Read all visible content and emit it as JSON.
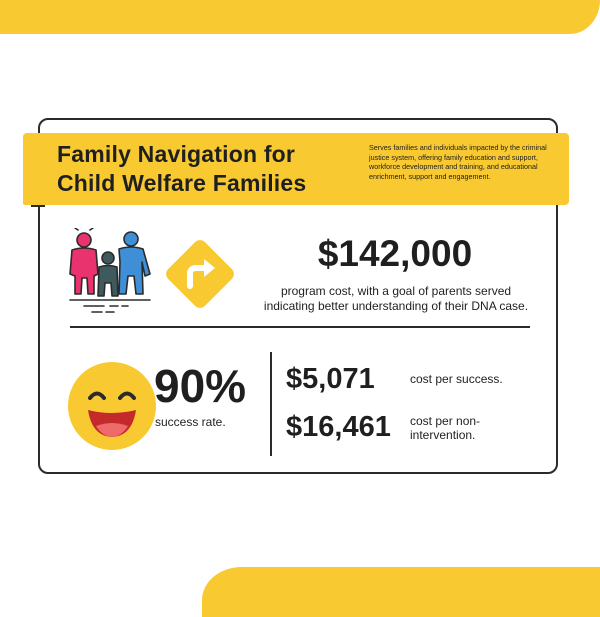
{
  "header": {
    "title_line1": "Family Navigation for",
    "title_line2": "Child Welfare Families",
    "description": "Serves families and individuals impacted by the criminal justice system, offering family education and support, workforce development and training, and educational enrichment, support and engagement."
  },
  "program": {
    "cost": "$142,000",
    "cost_description": "program cost, with a goal of parents served indicating better understanding of their DNA case."
  },
  "success": {
    "rate": "90%",
    "label": "success rate."
  },
  "stats": [
    {
      "value": "$5,071",
      "label": "cost per success."
    },
    {
      "value": "$16,461",
      "label": "cost per non-intervention."
    }
  ],
  "icons": {
    "people": "family-group-icon",
    "sign": "turn-right-sign-icon",
    "face": "smiley-face-icon"
  },
  "colors": {
    "accent_yellow": "#f8c930",
    "person_pink": "#e8336f",
    "person_teal": "#3e5a5e",
    "person_blue": "#3f8fd6",
    "outline": "#2b2b2b"
  }
}
